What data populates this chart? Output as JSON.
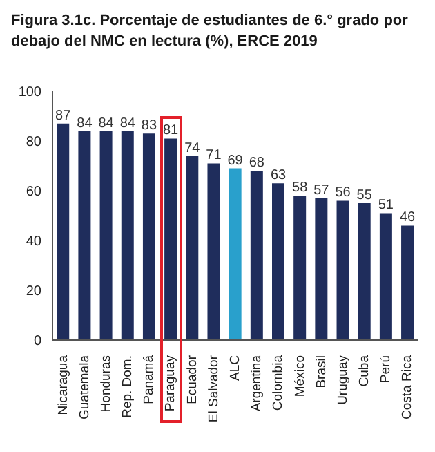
{
  "chart_data": {
    "type": "bar",
    "title": "Figura 3.1c. Porcentaje de estudiantes de 6.° grado por debajo del NMC en lectura (%), ERCE 2019",
    "categories": [
      "Nicaragua",
      "Guatemala",
      "Honduras",
      "Rep. Dom.",
      "Panamá",
      "Paraguay",
      "Ecuador",
      "El Salvador",
      "ALC",
      "Argentina",
      "Colombia",
      "México",
      "Brasil",
      "Uruguay",
      "Cuba",
      "Perú",
      "Costa Rica"
    ],
    "values": [
      87,
      84,
      84,
      84,
      83,
      81,
      74,
      71,
      69,
      68,
      63,
      58,
      57,
      56,
      55,
      51,
      46
    ],
    "colors": [
      "#1f2d5c",
      "#1f2d5c",
      "#1f2d5c",
      "#1f2d5c",
      "#1f2d5c",
      "#1f2d5c",
      "#1f2d5c",
      "#1f2d5c",
      "#29a0cc",
      "#1f2d5c",
      "#1f2d5c",
      "#1f2d5c",
      "#1f2d5c",
      "#1f2d5c",
      "#1f2d5c",
      "#1f2d5c",
      "#1f2d5c"
    ],
    "ylim": [
      0,
      100
    ],
    "yticks": [
      0,
      20,
      40,
      60,
      80,
      100
    ],
    "grid": false,
    "data_labels": true
  }
}
